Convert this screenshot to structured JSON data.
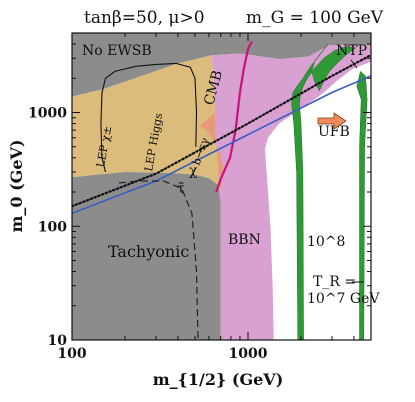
{
  "chart_data": {
    "type": "area",
    "title_left": "tanβ=50, μ>0",
    "title_right": "m_G = 100 GeV",
    "xlabel": "m_{1/2} (GeV)",
    "ylabel": "m_0 (GeV)",
    "x_scale": "log",
    "y_scale": "log",
    "xlim": [
      100,
      5000
    ],
    "ylim": [
      10,
      5000
    ],
    "x_ticks": [
      {
        "value": 100,
        "label": "100"
      },
      {
        "value": 1000,
        "label": "1000"
      }
    ],
    "y_ticks": [
      {
        "value": 10,
        "label": "10"
      },
      {
        "value": 100,
        "label": "100"
      },
      {
        "value": 1000,
        "label": "1000"
      }
    ],
    "colors": {
      "no_ewsb": "#8c8c8c",
      "tachyonic": "#8c8c8c",
      "lep_higgs": "#dcbc7c",
      "bsg": "#e69a78",
      "bbn": "#d9a0d2",
      "gravitino": "#2f9a35",
      "cmb_line": "#cc117a",
      "ufb_arrow": "#f08a5a",
      "ufb_line": "#3a5fc0"
    },
    "regions": [
      {
        "label": "No EWSB",
        "color_key": "no_ewsb",
        "points": [
          [
            100,
            5000
          ],
          [
            5000,
            5000
          ],
          [
            5000,
            3900
          ],
          [
            2900,
            3900
          ],
          [
            2200,
            3100
          ],
          [
            1500,
            2950
          ],
          [
            900,
            3300
          ],
          [
            620,
            3180
          ],
          [
            400,
            2700
          ],
          [
            250,
            2100
          ],
          [
            150,
            1600
          ],
          [
            100,
            1380
          ]
        ]
      },
      {
        "label": "Tachyonic",
        "color_key": "tachyonic",
        "points": [
          [
            100,
            10
          ],
          [
            700,
            10
          ],
          [
            700,
            165
          ],
          [
            680,
            230
          ],
          [
            600,
            265
          ],
          [
            500,
            285
          ],
          [
            350,
            295
          ],
          [
            200,
            300
          ],
          [
            140,
            285
          ],
          [
            100,
            270
          ]
        ]
      },
      {
        "label": "LEP Higgs",
        "color_key": "lep_higgs",
        "points": [
          [
            100,
            1380
          ],
          [
            150,
            1600
          ],
          [
            250,
            2100
          ],
          [
            400,
            2700
          ],
          [
            620,
            3180
          ],
          [
            640,
            2000
          ],
          [
            650,
            1000
          ],
          [
            660,
            500
          ],
          [
            680,
            300
          ],
          [
            690,
            200
          ],
          [
            700,
            165
          ],
          [
            680,
            230
          ],
          [
            600,
            265
          ],
          [
            500,
            285
          ],
          [
            350,
            295
          ],
          [
            200,
            300
          ],
          [
            140,
            285
          ],
          [
            100,
            270
          ]
        ]
      },
      {
        "label": "BBN",
        "color_key": "bbn",
        "points": [
          [
            620,
            3180
          ],
          [
            900,
            3300
          ],
          [
            1500,
            2950
          ],
          [
            2200,
            3100
          ],
          [
            2900,
            3900
          ],
          [
            5000,
            3900
          ],
          [
            5000,
            2800
          ],
          [
            3900,
            2400
          ],
          [
            3200,
            1900
          ],
          [
            2700,
            1500
          ],
          [
            2350,
            1280
          ],
          [
            2100,
            1150
          ],
          [
            1950,
            1060
          ],
          [
            1750,
            940
          ],
          [
            1500,
            800
          ],
          [
            1300,
            600
          ],
          [
            1250,
            480
          ],
          [
            1300,
            200
          ],
          [
            1340,
            100
          ],
          [
            1380,
            30
          ],
          [
            1400,
            10
          ],
          [
            700,
            10
          ],
          [
            700,
            165
          ],
          [
            690,
            200
          ],
          [
            680,
            300
          ],
          [
            660,
            500
          ],
          [
            650,
            1000
          ],
          [
            640,
            2000
          ]
        ]
      }
    ],
    "b_s_gamma_region": {
      "label": "b→sγ",
      "color_key": "bsg",
      "points": [
        [
          530,
          760
        ],
        [
          580,
          700
        ],
        [
          640,
          560
        ],
        [
          700,
          430
        ],
        [
          720,
          330
        ],
        [
          700,
          210
        ],
        [
          690,
          200
        ],
        [
          680,
          300
        ],
        [
          660,
          500
        ],
        [
          650,
          1000
        ]
      ]
    },
    "bands": [
      {
        "label": "10^8",
        "color_key": "gravitino",
        "points": [
          [
            2850,
            4000
          ],
          [
            2600,
            3300
          ],
          [
            2250,
            2500
          ],
          [
            2050,
            2000
          ],
          [
            1900,
            1700
          ],
          [
            1800,
            1500
          ],
          [
            1770,
            1200
          ],
          [
            1820,
            800
          ],
          [
            1890,
            300
          ],
          [
            1920,
            10
          ],
          [
            2070,
            10
          ],
          [
            2050,
            300
          ],
          [
            2000,
            800
          ],
          [
            1960,
            1200
          ],
          [
            1990,
            1500
          ],
          [
            2130,
            1900
          ],
          [
            2360,
            2400
          ],
          [
            2700,
            3000
          ],
          [
            3100,
            3500
          ],
          [
            3600,
            3800
          ],
          [
            4100,
            3700
          ],
          [
            3600,
            3200
          ],
          [
            3200,
            2700
          ],
          [
            2900,
            2300
          ],
          [
            2750,
            2000
          ],
          [
            2650,
            1800
          ],
          [
            2550,
            1550
          ],
          [
            2400,
            1850
          ],
          [
            2300,
            2300
          ],
          [
            2400,
            2850
          ]
        ]
      },
      {
        "label": "10^7 GeV",
        "color_key": "gravitino",
        "points": [
          [
            4150,
            1700
          ],
          [
            4400,
            1300
          ],
          [
            4300,
            500
          ],
          [
            4300,
            10
          ],
          [
            4550,
            10
          ],
          [
            4600,
            500
          ],
          [
            4750,
            1300
          ],
          [
            4650,
            2100
          ],
          [
            4350,
            2300
          ]
        ]
      }
    ],
    "lines": [
      {
        "label": "CMB",
        "color_key": "cmb_line",
        "points": [
          [
            660,
            200
          ],
          [
            700,
            260
          ],
          [
            790,
            400
          ],
          [
            850,
            700
          ],
          [
            900,
            1500
          ],
          [
            950,
            2500
          ],
          [
            1000,
            3600
          ],
          [
            1050,
            4200
          ]
        ]
      },
      {
        "label": "LEP χ±",
        "style": "black",
        "points": [
          [
            155,
            300
          ],
          [
            148,
            400
          ],
          [
            146,
            800
          ],
          [
            148,
            1500
          ],
          [
            155,
            2000
          ],
          [
            175,
            2300
          ],
          [
            230,
            2550
          ],
          [
            300,
            2650
          ],
          [
            390,
            2700
          ],
          [
            470,
            2500
          ],
          [
            500,
            2000
          ],
          [
            510,
            1000
          ],
          [
            505,
            500
          ]
        ]
      },
      {
        "label": "τ̃ LSP boundary",
        "style": "dotted",
        "points": [
          [
            100,
            150
          ],
          [
            300,
            290
          ],
          [
            1000,
            800
          ],
          [
            3000,
            2100
          ],
          [
            5000,
            3200
          ]
        ]
      },
      {
        "label": "UFB",
        "color_key": "ufb_line",
        "points": [
          [
            100,
            130
          ],
          [
            300,
            250
          ],
          [
            1000,
            640
          ],
          [
            3000,
            1500
          ],
          [
            5000,
            2100
          ]
        ]
      },
      {
        "label": "tachyonic boundary",
        "style": "dashed",
        "points": [
          [
            185,
            240
          ],
          [
            240,
            250
          ],
          [
            330,
            250
          ],
          [
            420,
            215
          ],
          [
            480,
            130
          ],
          [
            510,
            40
          ],
          [
            520,
            10
          ]
        ]
      }
    ],
    "annotations": {
      "no_ewsb": "No EWSB",
      "ntp": "NTP",
      "ufb": "UFB",
      "cmb": "CMB",
      "lep_chi": "LEP χ±",
      "lep_higgs": "LEP Higgs",
      "bsg": "b→sγ",
      "chi": "χ",
      "stau": "τ̃",
      "bbn": "BBN",
      "tachyonic": "Tachyonic",
      "tr8": "10^8",
      "tr_label": "T_R =",
      "tr7": "10^7 GeV"
    }
  }
}
